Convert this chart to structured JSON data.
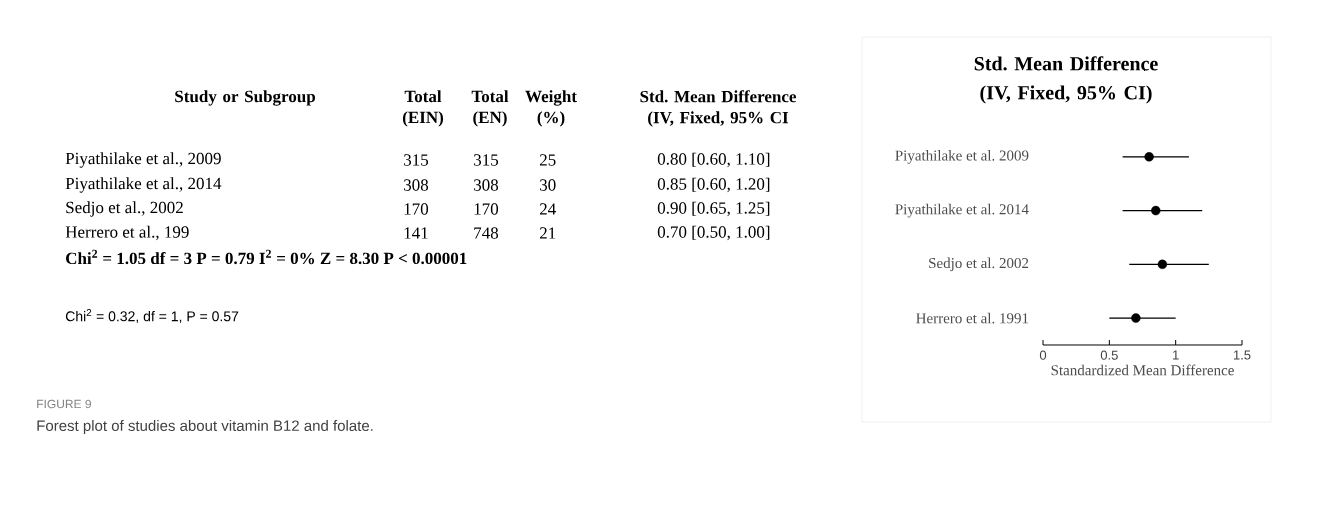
{
  "chart_data": [
    {
      "type": "other",
      "annotations": [
        "Study or Subgroup",
        "Total (EIN)",
        "Total (EN)",
        "Weight (%)",
        "Std. Mean Difference (IV, Fixed, 95% CI",
        "Piyathilake et al., 2009",
        "315",
        "315",
        "25",
        "0.80 [0.60, 1.10]",
        "Piyathilake et al., 2014",
        "308",
        "308",
        "30",
        "0.85 [0.60, 1.20]",
        "Sedjo et al., 2002",
        "170",
        "170",
        "24",
        "0.90 [0.65, 1.25]",
        "Herrero et al., 199",
        "141",
        "748",
        "21",
        "0.70 [0.50, 1.00]",
        "Chi$^{2}$ = 1.05   df = 3  P = 0.79   I$^{2}$ = 0%   Z = 8.30   P < 0.00001",
        "Chi$^{2}$ = 0.32, df = 1, P = 0.57",
        "FIGURE 9",
        "Forest plot of studies about vitamin B12 and folate."
      ]
    },
    {
      "type": "scatter",
      "orientation": "horizontal",
      "title": "Std. Mean Difference (IV, Fixed, 95% CI)",
      "xlabel": "Standardized Mean Difference",
      "categories": [
        "Piyathilake et al. 2009",
        "Piyathilake et al. 2014",
        "Sedjo et al. 2002",
        "Herrero et al. 1991"
      ],
      "values": [
        0.8,
        0.85,
        0.9,
        0.7
      ],
      "errors": [
        [
          0.6,
          1.1
        ],
        [
          0.6,
          1.2
        ],
        [
          0.65,
          1.25
        ],
        [
          0.5,
          1.0
        ]
      ],
      "color": "#000000",
      "marker": "circle",
      "xlim": [
        0,
        1.5
      ],
      "xticks": [
        0,
        0.5,
        1,
        1.5
      ]
    }
  ]
}
